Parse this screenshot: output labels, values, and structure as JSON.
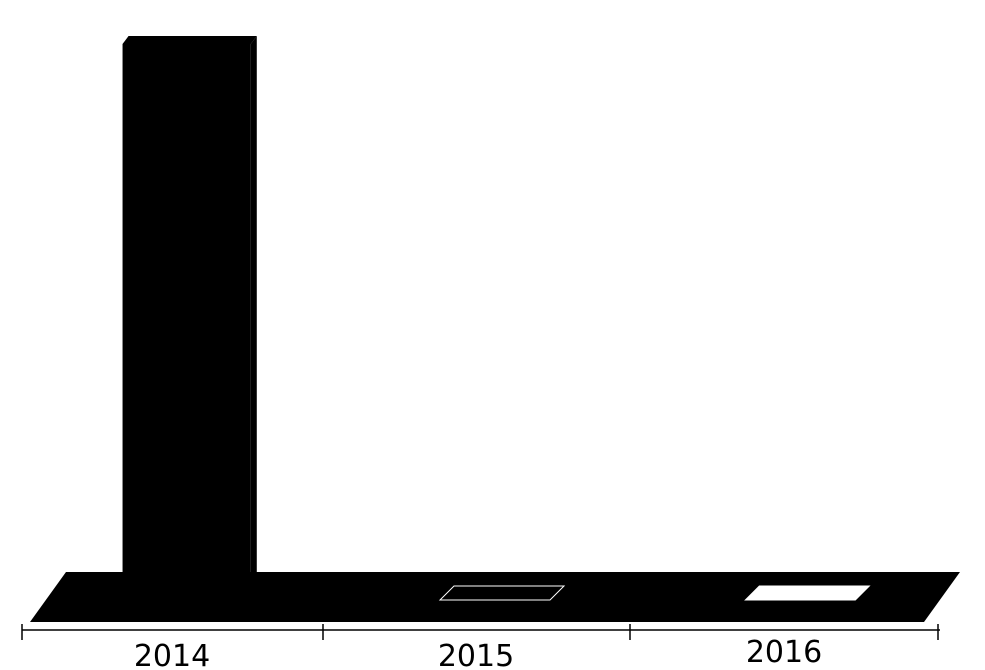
{
  "chart_data": {
    "type": "bar",
    "style": "3d",
    "categories": [
      "2014",
      "2015",
      "2016"
    ],
    "values": [
      100,
      0,
      0
    ],
    "title": "",
    "xlabel": "",
    "ylabel": "",
    "grid": false,
    "legend": "none",
    "colors": {
      "bar": "#000000",
      "floor": "#000000",
      "background": "#ffffff",
      "axis": "#000000"
    }
  }
}
